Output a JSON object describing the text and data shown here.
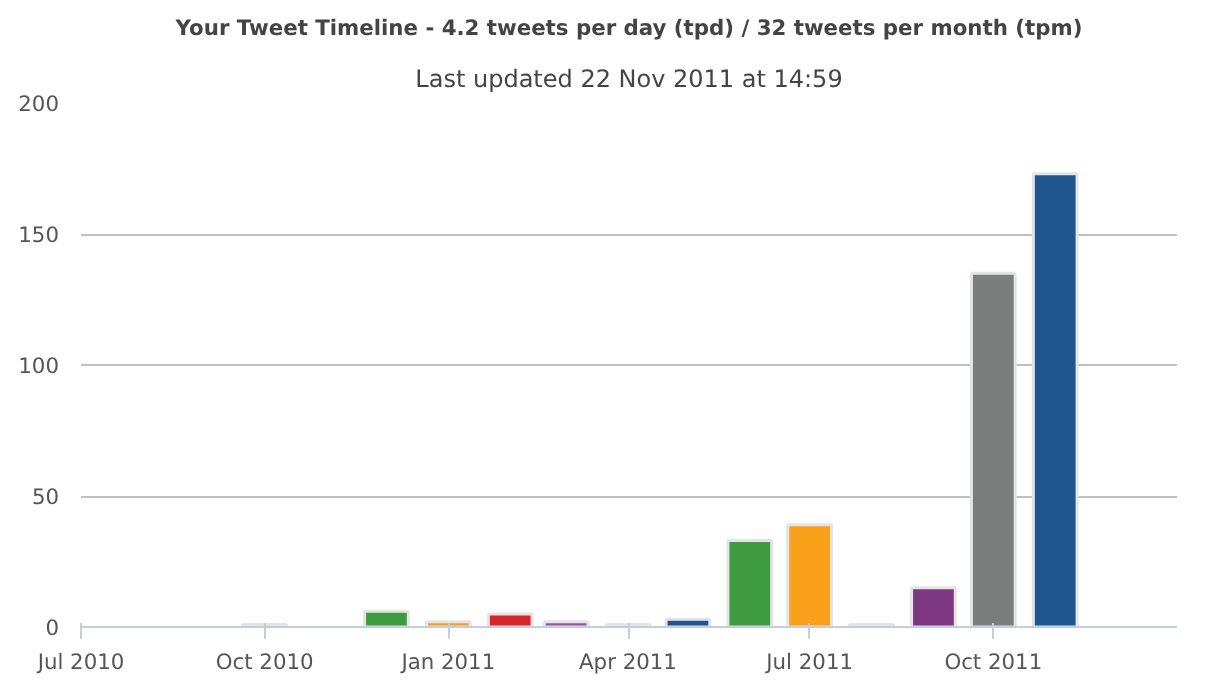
{
  "chart_data": {
    "type": "bar",
    "subtitle": "Last updated 22 Nov 2011 at 14:59",
    "title": "Your Tweet Timeline - 4.2 tweets per day (tpd) / 32 tweets per month (tpm)",
    "x": [
      "2010-10",
      "2010-12",
      "2011-01",
      "2011-02",
      "2011-03",
      "2011-04",
      "2011-05",
      "2011-06",
      "2011-07",
      "2011-08",
      "2011-09",
      "2011-10",
      "2011-11"
    ],
    "values": [
      1,
      6,
      2,
      5,
      2,
      1,
      3,
      33,
      39,
      1,
      15,
      135,
      173
    ],
    "colors": [
      "#c6d3e8",
      "#3d9a3d",
      "#f9a11b",
      "#d8232a",
      "#9b52a0",
      "#c6d4e6",
      "#1f5491",
      "#3f9b3f",
      "#f9a11b",
      "#f4b6b6",
      "#7d3780",
      "#7a7e7c",
      "#1f568f"
    ],
    "xlim": [
      "2010-07-01",
      "2012-01-01"
    ],
    "xticks": [
      {
        "value": "2010-07",
        "label": "Jul 2010"
      },
      {
        "value": "2010-10",
        "label": "Oct 2010"
      },
      {
        "value": "2011-01",
        "label": "Jan 2011"
      },
      {
        "value": "2011-04",
        "label": "Apr 2011"
      },
      {
        "value": "2011-07",
        "label": "Jul 2011"
      },
      {
        "value": "2011-10",
        "label": "Oct 2011"
      }
    ],
    "ylim": [
      0,
      200
    ],
    "yticks": [
      0,
      50,
      100,
      150,
      200
    ],
    "grid": "y"
  }
}
